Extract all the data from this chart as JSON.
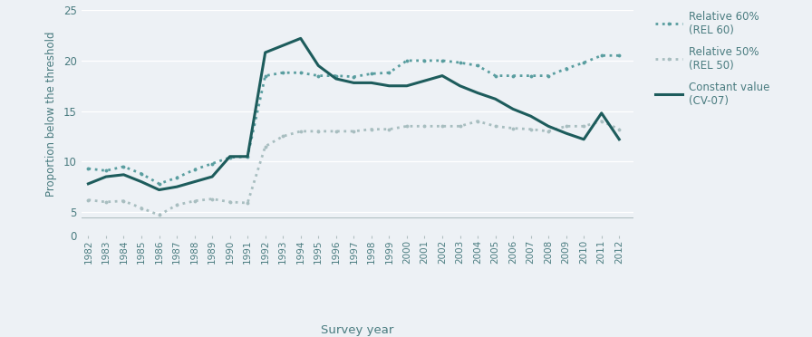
{
  "years": [
    1982,
    1983,
    1984,
    1985,
    1986,
    1987,
    1988,
    1989,
    1990,
    1991,
    1992,
    1993,
    1994,
    1995,
    1996,
    1997,
    1998,
    1999,
    2000,
    2001,
    2002,
    2003,
    2004,
    2005,
    2006,
    2007,
    2008,
    2009,
    2010,
    2011,
    2012
  ],
  "rel60": [
    9.3,
    9.1,
    9.5,
    8.8,
    7.8,
    8.4,
    9.2,
    9.8,
    10.4,
    10.5,
    18.5,
    18.8,
    18.8,
    18.5,
    18.5,
    18.4,
    18.7,
    18.8,
    20.0,
    20.0,
    20.0,
    19.8,
    19.5,
    18.5,
    18.5,
    18.5,
    18.5,
    19.2,
    19.8,
    20.5,
    20.5
  ],
  "rel50": [
    6.2,
    6.0,
    6.1,
    5.4,
    4.7,
    5.7,
    6.1,
    6.3,
    6.0,
    5.9,
    11.5,
    12.5,
    13.0,
    13.0,
    13.0,
    13.0,
    13.2,
    13.2,
    13.5,
    13.5,
    13.5,
    13.5,
    14.0,
    13.5,
    13.3,
    13.2,
    13.0,
    13.5,
    13.5,
    14.0,
    13.2
  ],
  "cv07": [
    7.8,
    8.5,
    8.7,
    8.0,
    7.2,
    7.5,
    8.0,
    8.5,
    10.5,
    10.5,
    20.8,
    21.5,
    22.2,
    19.5,
    18.2,
    17.8,
    17.8,
    17.5,
    17.5,
    18.0,
    18.5,
    17.5,
    16.8,
    16.2,
    15.2,
    14.5,
    13.5,
    12.8,
    12.2,
    14.8,
    12.2
  ],
  "rel60_color": "#5a9ea0",
  "rel50_color": "#a8bec0",
  "cv07_color": "#1d5c5c",
  "bg_color": "#edf1f5",
  "grid_color": "#ffffff",
  "ylabel": "Proportion below the threshold",
  "xlabel": "Survey year",
  "ylim_main": [
    4.5,
    25
  ],
  "ylim_zero": [
    0,
    0.5
  ],
  "yticks": [
    5,
    10,
    15,
    20,
    25
  ],
  "legend_labels": [
    "Relative 60%\n(REL 60)",
    "Relative 50%\n(REL 50)",
    "Constant value\n(CV-07)"
  ]
}
